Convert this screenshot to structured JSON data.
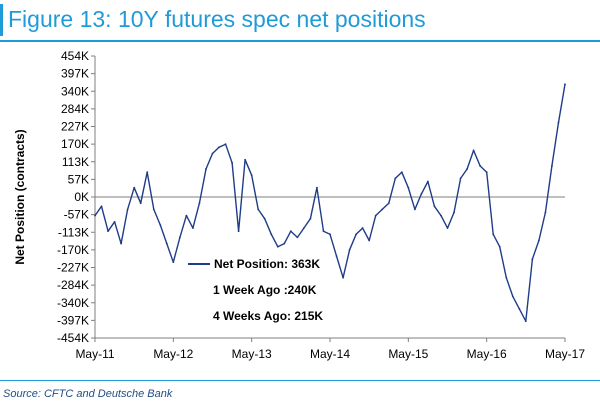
{
  "title": "Figure 13: 10Y futures spec net positions",
  "source": "Source: CFTC and Deutsche Bank",
  "colors": {
    "accent": "#1f9bd7",
    "line": "#1f3c88",
    "axis": "#7f7f7f",
    "text": "#000000"
  },
  "chart_data": {
    "type": "line",
    "ylabel": "Net Position (contracts)",
    "ylim": [
      -454,
      454
    ],
    "y_unit": "K contracts",
    "y_tick_labels": [
      "454K",
      "397K",
      "340K",
      "284K",
      "227K",
      "170K",
      "113K",
      "57K",
      "0K",
      "-57K",
      "-113K",
      "-170K",
      "-227K",
      "-284K",
      "-340K",
      "-397K",
      "-454K"
    ],
    "x_tick_labels": [
      "May-11",
      "May-12",
      "May-13",
      "May-14",
      "May-15",
      "May-16",
      "May-17"
    ],
    "grid": false,
    "annotations": [
      "Net Position: 363K",
      "1 Week Ago :240K",
      "4 Weeks Ago: 215K"
    ],
    "series": [
      {
        "name": "Net Position",
        "x": [
          "2011-05",
          "2011-06",
          "2011-07",
          "2011-08",
          "2011-09",
          "2011-10",
          "2011-11",
          "2011-12",
          "2012-01",
          "2012-02",
          "2012-03",
          "2012-04",
          "2012-05",
          "2012-06",
          "2012-07",
          "2012-08",
          "2012-09",
          "2012-10",
          "2012-11",
          "2012-12",
          "2013-01",
          "2013-02",
          "2013-03",
          "2013-04",
          "2013-05",
          "2013-06",
          "2013-07",
          "2013-08",
          "2013-09",
          "2013-10",
          "2013-11",
          "2013-12",
          "2014-01",
          "2014-02",
          "2014-03",
          "2014-04",
          "2014-05",
          "2014-06",
          "2014-07",
          "2014-08",
          "2014-09",
          "2014-10",
          "2014-11",
          "2014-12",
          "2015-01",
          "2015-02",
          "2015-03",
          "2015-04",
          "2015-05",
          "2015-06",
          "2015-07",
          "2015-08",
          "2015-09",
          "2015-10",
          "2015-11",
          "2015-12",
          "2016-01",
          "2016-02",
          "2016-03",
          "2016-04",
          "2016-05",
          "2016-06",
          "2016-07",
          "2016-08",
          "2016-09",
          "2016-10",
          "2016-11",
          "2016-12",
          "2017-01",
          "2017-02",
          "2017-03",
          "2017-04",
          "2017-05"
        ],
        "values": [
          -60,
          -30,
          -110,
          -80,
          -150,
          -40,
          30,
          -20,
          80,
          -40,
          -90,
          -150,
          -210,
          -130,
          -60,
          -100,
          -20,
          90,
          140,
          160,
          170,
          110,
          -110,
          120,
          70,
          -40,
          -70,
          -120,
          -160,
          -150,
          -110,
          -130,
          -100,
          -70,
          30,
          -110,
          -120,
          -190,
          -260,
          -170,
          -120,
          -100,
          -140,
          -60,
          -40,
          -20,
          60,
          80,
          30,
          -40,
          10,
          50,
          -30,
          -60,
          -100,
          -50,
          60,
          90,
          150,
          100,
          80,
          -120,
          -160,
          -260,
          -320,
          -360,
          -400,
          -200,
          -140,
          -50,
          100,
          240,
          363
        ]
      }
    ]
  }
}
